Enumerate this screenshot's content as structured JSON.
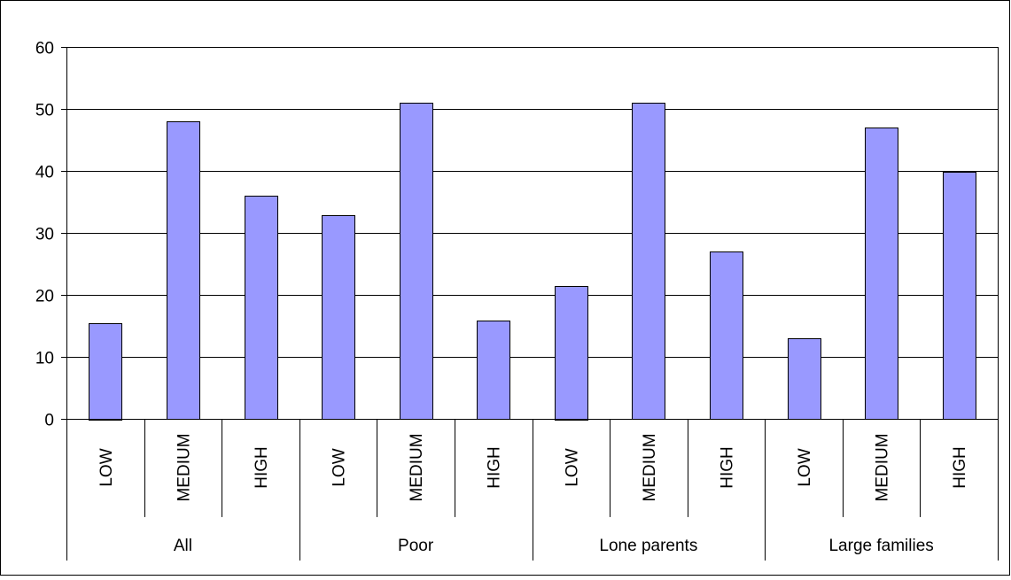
{
  "chart_data": {
    "type": "bar",
    "title": "",
    "xlabel": "",
    "ylabel": "",
    "ylim": [
      0,
      60
    ],
    "yticks": [
      0,
      10,
      20,
      30,
      40,
      50,
      60
    ],
    "grid": true,
    "legend": "none",
    "groups": [
      {
        "label": "All",
        "categories": [
          "LOW",
          "MEDIUM",
          "HIGH"
        ],
        "values": [
          15.5,
          48,
          36
        ]
      },
      {
        "label": "Poor",
        "categories": [
          "LOW",
          "MEDIUM",
          "HIGH"
        ],
        "values": [
          32.8,
          51,
          15.8
        ]
      },
      {
        "label": "Lone parents",
        "categories": [
          "LOW",
          "MEDIUM",
          "HIGH"
        ],
        "values": [
          21.5,
          51,
          27
        ]
      },
      {
        "label": "Large families",
        "categories": [
          "LOW",
          "MEDIUM",
          "HIGH"
        ],
        "values": [
          13,
          47,
          39.8
        ]
      }
    ],
    "colors": {
      "bar_fill": "#9999FF",
      "bar_stroke": "#000000",
      "grid": "#000000",
      "axis": "#000000"
    }
  }
}
